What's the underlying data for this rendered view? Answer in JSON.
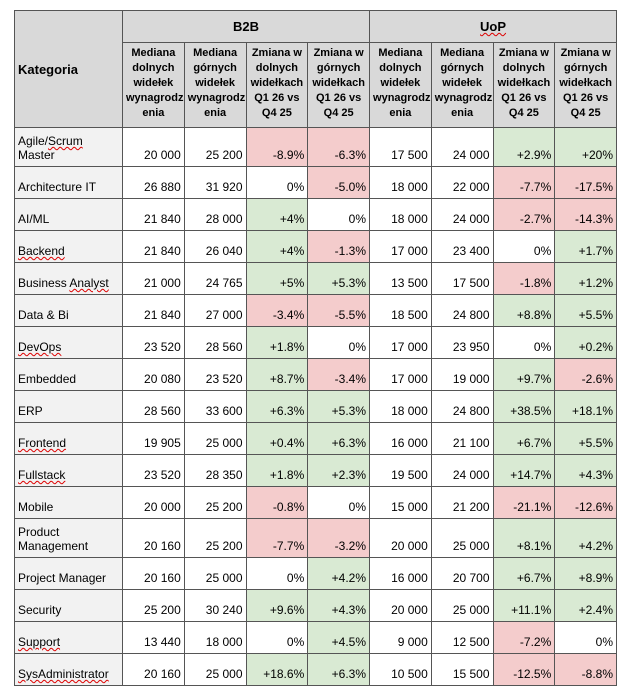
{
  "header": {
    "category": "Kategoria",
    "groups": [
      "B2B",
      "UoP"
    ],
    "columns": [
      "Mediana dolnych widełek wynagrodzenia",
      "Mediana górnych widełek wynagrodzenia",
      "Zmiana w dolnych widełkach Q1 26 vs Q4 25",
      "Zmiana w górnych widełkach Q1 26 vs Q4 25",
      "Mediana dolnych widełek wynagrodzenia",
      "Mediana górnych widełek wynagrodzenia",
      "Zmiana w dolnych widełkach Q1 26 vs Q4 25",
      "Zmiana w górnych widełkach Q1 26 vs Q4 25"
    ],
    "columns_display": [
      "Mediana dolnych widełek wynagrodz enia",
      "Mediana górnych widełek wynagrodz enia",
      "Zmiana w dolnych widełkach Q1 26 vs Q4 25",
      "Zmiana w górnych widełkach Q1 26 vs Q4 25",
      "Mediana dolnych widełek wynagrodz enia",
      "Mediana górnych widełek wynagrodz enia",
      "Zmiana w dolnych widełkach Q1 26 vs Q4 25",
      "Zmiana w górnych widełkach Q1 26 vs Q4 25"
    ]
  },
  "colors": {
    "positive": "#d9ead3",
    "negative": "#f4cccc",
    "header": "#d9d9d9"
  },
  "rows": [
    {
      "category": "Agile/Scrum Master",
      "values": [
        "20 000",
        "25 200",
        "-8.9%",
        "-6.3%",
        "17 500",
        "24 000",
        "+2.9%",
        "+20%"
      ]
    },
    {
      "category": "Architecture IT",
      "values": [
        "26 880",
        "31 920",
        "0%",
        "-5.0%",
        "18 000",
        "22 000",
        "-7.7%",
        "-17.5%"
      ]
    },
    {
      "category": "AI/ML",
      "values": [
        "21 840",
        "28 000",
        "+4%",
        "0%",
        "18 000",
        "24 000",
        "-2.7%",
        "-14.3%"
      ]
    },
    {
      "category": "Backend",
      "values": [
        "21 840",
        "26 040",
        "+4%",
        "-1.3%",
        "17 000",
        "23 400",
        "0%",
        "+1.7%"
      ]
    },
    {
      "category": "Business Analyst",
      "values": [
        "21 000",
        "24 765",
        "+5%",
        "+5.3%",
        "13 500",
        "17 500",
        "-1.8%",
        "+1.2%"
      ]
    },
    {
      "category": "Data & Bi",
      "values": [
        "21 840",
        "27 000",
        "-3.4%",
        "-5.5%",
        "18 500",
        "24 800",
        "+8.8%",
        "+5.5%"
      ]
    },
    {
      "category": "DevOps",
      "values": [
        "23 520",
        "28 560",
        "+1.8%",
        "0%",
        "17 000",
        "23 950",
        "0%",
        "+0.2%"
      ]
    },
    {
      "category": "Embedded",
      "values": [
        "20 080",
        "23 520",
        "+8.7%",
        "-3.4%",
        "17 000",
        "19 000",
        "+9.7%",
        "-2.6%"
      ]
    },
    {
      "category": "ERP",
      "values": [
        "28 560",
        "33 600",
        "+6.3%",
        "+5.3%",
        "18 000",
        "24 800",
        "+38.5%",
        "+18.1%"
      ]
    },
    {
      "category": "Frontend",
      "values": [
        "19 905",
        "25 000",
        "+0.4%",
        "+6.3%",
        "16 000",
        "21 100",
        "+6.7%",
        "+5.5%"
      ]
    },
    {
      "category": "Fullstack",
      "values": [
        "23 520",
        "28 350",
        "+1.8%",
        "+2.3%",
        "19 500",
        "24 000",
        "+14.7%",
        "+4.3%"
      ]
    },
    {
      "category": "Mobile",
      "values": [
        "20 000",
        "25 200",
        "-0.8%",
        "0%",
        "15 000",
        "21 200",
        "-21.1%",
        "-12.6%"
      ]
    },
    {
      "category": "Product Management",
      "values": [
        "20 160",
        "25 200",
        "-7.7%",
        "-3.2%",
        "20 000",
        "25 000",
        "+8.1%",
        "+4.2%"
      ]
    },
    {
      "category": "Project Manager",
      "values": [
        "20 160",
        "25 000",
        "0%",
        "+4.2%",
        "16 000",
        "20 700",
        "+6.7%",
        "+8.9%"
      ]
    },
    {
      "category": "Security",
      "values": [
        "25 200",
        "30 240",
        "+9.6%",
        "+4.3%",
        "20 000",
        "25 000",
        "+11.1%",
        "+2.4%"
      ]
    },
    {
      "category": "Support",
      "values": [
        "13 440",
        "18 000",
        "0%",
        "+4.5%",
        "9 000",
        "12 500",
        "-7.2%",
        "0%"
      ]
    },
    {
      "category": "SysAdministrator",
      "values": [
        "20 160",
        "25 000",
        "+18.6%",
        "+6.3%",
        "10 500",
        "15 500",
        "-12.5%",
        "-8.8%"
      ]
    }
  ]
}
